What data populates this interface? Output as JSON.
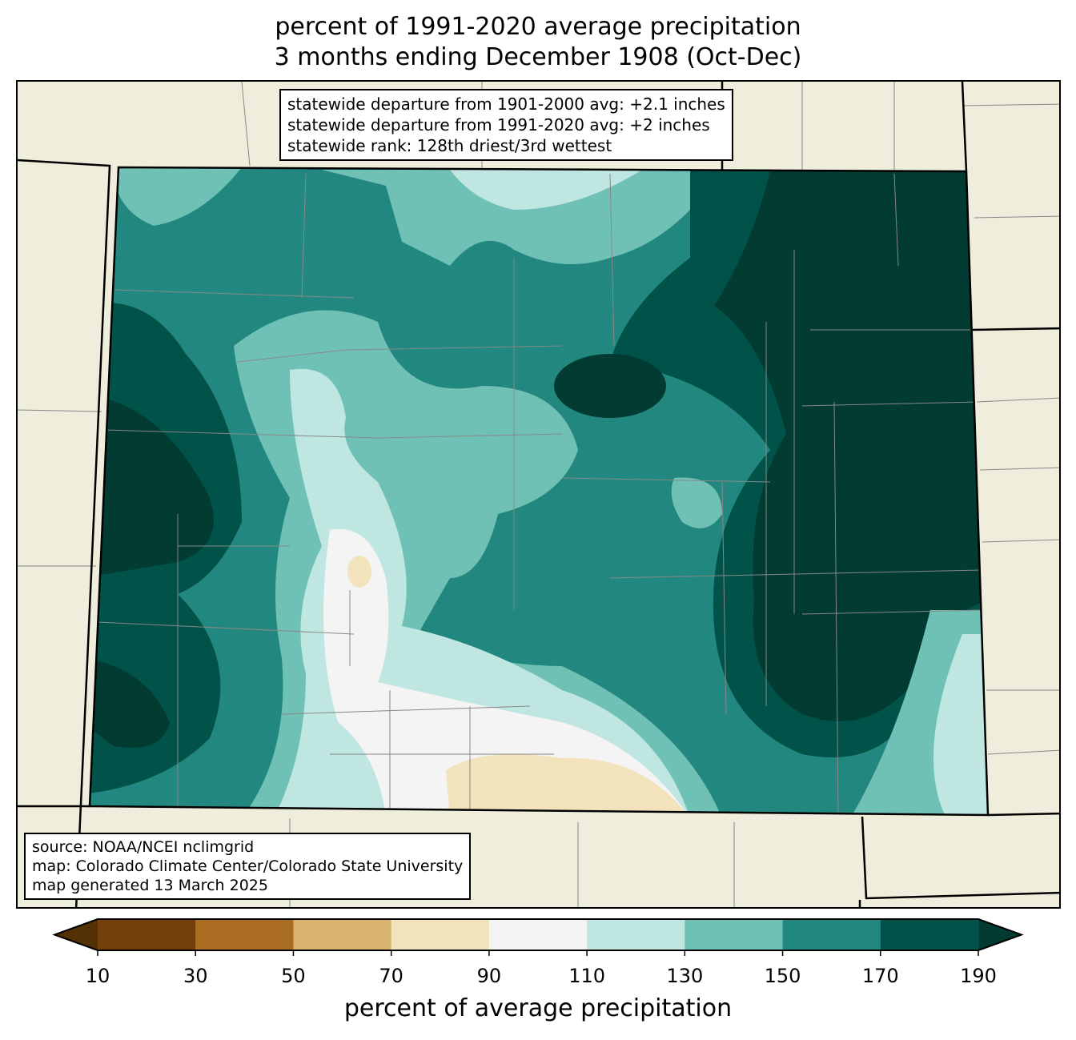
{
  "title": {
    "line1": "percent of 1991-2020 average precipitation",
    "line2": "3 months ending December 1908 (Oct-Dec)"
  },
  "stats": {
    "line1": "statewide departure from 1901-2000 avg: +2.1 inches",
    "line2": "statewide departure from 1991-2020 avg: +2 inches",
    "line3": "statewide rank: 128th driest/3rd wettest"
  },
  "credits": {
    "line1": "source: NOAA/NCEI nclimgrid",
    "line2": "map: Colorado Climate Center/Colorado State University",
    "line3": "map generated 13 March 2025"
  },
  "colorbar": {
    "label": "percent of average precipitation",
    "ticks": [
      "10",
      "30",
      "50",
      "70",
      "90",
      "110",
      "130",
      "150",
      "170",
      "190"
    ],
    "colors": [
      "#744009",
      "#ab6d22",
      "#d9b46e",
      "#f2e3bd",
      "#f3f4f3",
      "#bfe6e1",
      "#70c1b5",
      "#22877e",
      "#01534a"
    ],
    "under_color": "#543005",
    "over_color": "#013b32"
  }
}
